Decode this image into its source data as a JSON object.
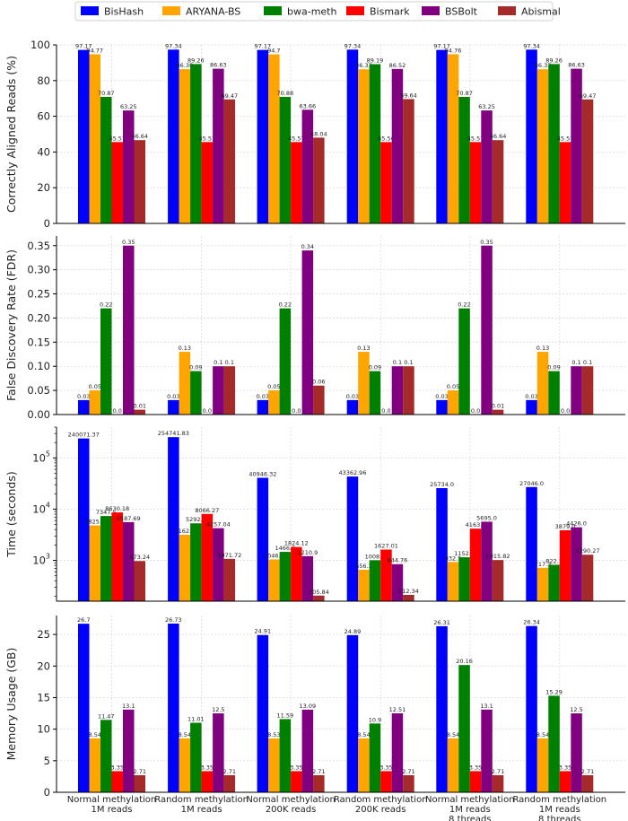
{
  "legend": {
    "items": [
      {
        "name": "BisHash",
        "color": "#0000ff"
      },
      {
        "name": "ARYANA-BS",
        "color": "#ffa500"
      },
      {
        "name": "bwa-meth",
        "color": "#008000"
      },
      {
        "name": "Bismark",
        "color": "#ff0000"
      },
      {
        "name": "BSBolt",
        "color": "#800080"
      },
      {
        "name": "Abismal",
        "color": "#a52a2a"
      }
    ]
  },
  "chart_data": [
    {
      "type": "bar",
      "ylabel": "Correctly Aligned Reads (%)",
      "ylim": [
        0,
        100
      ],
      "yticks": [
        0,
        20,
        40,
        60,
        80,
        100
      ],
      "yscale": "linear",
      "categories": [
        "Normal methylation\n1M reads",
        "Random methylation\n1M reads",
        "Normal methylation\n200K reads",
        "Random methylation\n200K reads",
        "Normal methylation\n1M reads\n8 threads",
        "Random methylation\n1M reads\n8 threads"
      ],
      "series": [
        {
          "name": "BisHash",
          "values": [
            97.17,
            97.34,
            97.17,
            97.34,
            97.17,
            97.34
          ],
          "labels": [
            "97.17",
            "97.34",
            "97.17",
            "97.34",
            "97.17",
            "97.34"
          ]
        },
        {
          "name": "ARYANA-BS",
          "values": [
            94.77,
            86.38,
            94.7,
            86.33,
            94.76,
            86.33
          ],
          "labels": [
            "94.77",
            "86.38",
            "94.7",
            "86.33",
            "94.76",
            "86.33"
          ]
        },
        {
          "name": "bwa-meth",
          "values": [
            70.87,
            89.26,
            70.88,
            89.19,
            70.87,
            89.26
          ],
          "labels": [
            "70.87",
            "89.26",
            "70.88",
            "89.19",
            "70.87",
            "89.26"
          ]
        },
        {
          "name": "Bismark",
          "values": [
            45.57,
            45.57,
            45.57,
            45.56,
            45.57,
            45.57
          ],
          "labels": [
            "45.57",
            "45.57",
            "45.57",
            "45.56",
            "45.57",
            "45.57"
          ]
        },
        {
          "name": "BSBolt",
          "values": [
            63.25,
            86.63,
            63.66,
            86.52,
            63.25,
            86.63
          ],
          "labels": [
            "63.25",
            "86.63",
            "63.66",
            "86.52",
            "63.25",
            "86.63"
          ]
        },
        {
          "name": "Abismal",
          "values": [
            46.64,
            69.47,
            48.04,
            69.64,
            46.64,
            69.47
          ],
          "labels": [
            "46.64",
            "69.47",
            "48.04",
            "69.64",
            "46.64",
            "69.47"
          ]
        }
      ]
    },
    {
      "type": "bar",
      "ylabel": "False Discovery Rate (FDR)",
      "ylim": [
        0,
        0.37
      ],
      "yticks": [
        0.0,
        0.05,
        0.1,
        0.15,
        0.2,
        0.25,
        0.3,
        0.35
      ],
      "ytick_labels": [
        "0.00",
        "0.05",
        "0.10",
        "0.15",
        "0.20",
        "0.25",
        "0.30",
        "0.35"
      ],
      "yscale": "linear",
      "categories": [
        "Normal methylation\n1M reads",
        "Random methylation\n1M reads",
        "Normal methylation\n200K reads",
        "Random methylation\n200K reads",
        "Normal methylation\n1M reads\n8 threads",
        "Random methylation\n1M reads\n8 threads"
      ],
      "series": [
        {
          "name": "BisHash",
          "values": [
            0.03,
            0.03,
            0.03,
            0.03,
            0.03,
            0.03
          ],
          "labels": [
            "0.03",
            "0.03",
            "0.03",
            "0.03",
            "0.03",
            "0.03"
          ]
        },
        {
          "name": "ARYANA-BS",
          "values": [
            0.05,
            0.13,
            0.05,
            0.13,
            0.05,
            0.13
          ],
          "labels": [
            "0.05",
            "0.13",
            "0.05",
            "0.13",
            "0.05",
            "0.13"
          ]
        },
        {
          "name": "bwa-meth",
          "values": [
            0.22,
            0.09,
            0.22,
            0.09,
            0.22,
            0.09
          ],
          "labels": [
            "0.22",
            "0.09",
            "0.22",
            "0.09",
            "0.22",
            "0.09"
          ]
        },
        {
          "name": "Bismark",
          "values": [
            0.0,
            0.0,
            0.0,
            0.0,
            0.0,
            0.0
          ],
          "labels": [
            "0.0",
            "0.0",
            "0.0",
            "0.0",
            "0.0",
            "0.0"
          ]
        },
        {
          "name": "BSBolt",
          "values": [
            0.35,
            0.1,
            0.34,
            0.1,
            0.35,
            0.1
          ],
          "labels": [
            "0.35",
            "0.1",
            "0.34",
            "0.1",
            "0.35",
            "0.1"
          ]
        },
        {
          "name": "Abismal",
          "values": [
            0.01,
            0.1,
            0.06,
            0.1,
            0.01,
            0.1
          ],
          "labels": [
            "0.01",
            "0.1",
            "0.06",
            "0.1",
            "0.01",
            "0.1"
          ]
        }
      ]
    },
    {
      "type": "bar",
      "ylabel": "Time (seconds)",
      "yscale": "log",
      "ylim": [
        160,
        400000
      ],
      "yticks": [
        1000,
        10000,
        100000
      ],
      "ytick_labels": [
        [
          "10",
          "3"
        ],
        [
          "10",
          "4"
        ],
        [
          "10",
          "5"
        ]
      ],
      "categories": [
        "Normal methylation\n1M reads",
        "Random methylation\n1M reads",
        "Normal methylation\n200K reads",
        "Random methylation\n200K reads",
        "Normal methylation\n1M reads\n8 threads",
        "Random methylation\n1M reads\n8 threads"
      ],
      "series": [
        {
          "name": "BisHash",
          "values": [
            240071.37,
            254741.83,
            40946.32,
            43362.96,
            25734.0,
            27046.0
          ],
          "labels": [
            "240071.37",
            "254741.83",
            "40946.32",
            "43362.96",
            "25734.0",
            "27046.0"
          ]
        },
        {
          "name": "ARYANA-BS",
          "values": [
            4825.1,
            3162.4,
            1046.5,
            656.3,
            932.5,
            717.3
          ],
          "labels": [
            "4825.1",
            "3162.4",
            "1046.5",
            "656.3",
            "932.5",
            "717.3"
          ]
        },
        {
          "name": "bwa-meth",
          "values": [
            7347.5,
            5292.7,
            1466.9,
            1008.5,
            1152.0,
            822.1
          ],
          "labels": [
            "7347.5",
            "5292.7",
            "1466.9",
            "1008.5",
            "1152.0",
            "822.1"
          ]
        },
        {
          "name": "Bismark",
          "values": [
            8630.18,
            8066.27,
            1824.12,
            1627.01,
            4163.0,
            3879.0
          ],
          "labels": [
            "8630.18",
            "8066.27",
            "1824.12",
            "1627.01",
            "4163.0",
            "3879.0"
          ]
        },
        {
          "name": "BSBolt",
          "values": [
            5587.69,
            4257.04,
            1210.9,
            844.76,
            5695.0,
            4426.0
          ],
          "labels": [
            "5587.69",
            "4257.04",
            "1210.9",
            "844.76",
            "5695.0",
            "4426.0"
          ]
        },
        {
          "name": "Abismal",
          "values": [
            973.24,
            1071.72,
            205.84,
            212.34,
            1015.82,
            1290.27
          ],
          "labels": [
            "973.24",
            "1071.72",
            "205.84",
            "212.34",
            "1015.82",
            "1290.27"
          ]
        }
      ]
    },
    {
      "type": "bar",
      "ylabel": "Memory Usage (GB)",
      "ylim": [
        0,
        28
      ],
      "yticks": [
        0,
        5,
        10,
        15,
        20,
        25
      ],
      "yscale": "linear",
      "categories": [
        "Normal methylation\n1M reads",
        "Random methylation\n1M reads",
        "Normal methylation\n200K reads",
        "Random methylation\n200K reads",
        "Normal methylation\n1M reads\n8 threads",
        "Random methylation\n1M reads\n8 threads"
      ],
      "series": [
        {
          "name": "BisHash",
          "values": [
            26.7,
            26.73,
            24.91,
            24.89,
            26.31,
            26.34
          ],
          "labels": [
            "26.7",
            "26.73",
            "24.91",
            "24.89",
            "26.31",
            "26.34"
          ]
        },
        {
          "name": "ARYANA-BS",
          "values": [
            8.54,
            8.54,
            8.53,
            8.54,
            8.54,
            8.54
          ],
          "labels": [
            "8.54",
            "8.54",
            "8.53",
            "8.54",
            "8.54",
            "8.54"
          ]
        },
        {
          "name": "bwa-meth",
          "values": [
            11.47,
            11.01,
            11.59,
            10.9,
            20.16,
            15.29
          ],
          "labels": [
            "11.47",
            "11.01",
            "11.59",
            "10.9",
            "20.16",
            "15.29"
          ]
        },
        {
          "name": "Bismark",
          "values": [
            3.35,
            3.35,
            3.35,
            3.35,
            3.35,
            3.35
          ],
          "labels": [
            "3.35",
            "3.35",
            "3.35",
            "3.35",
            "3.35",
            "3.35"
          ]
        },
        {
          "name": "BSBolt",
          "values": [
            13.1,
            12.5,
            13.09,
            12.51,
            13.1,
            12.5
          ],
          "labels": [
            "13.1",
            "12.5",
            "13.09",
            "12.51",
            "13.1",
            "12.5"
          ]
        },
        {
          "name": "Abismal",
          "values": [
            2.71,
            2.71,
            2.71,
            2.71,
            2.71,
            2.71
          ],
          "labels": [
            "2.71",
            "2.71",
            "2.71",
            "2.71",
            "2.71",
            "2.71"
          ]
        }
      ]
    }
  ]
}
